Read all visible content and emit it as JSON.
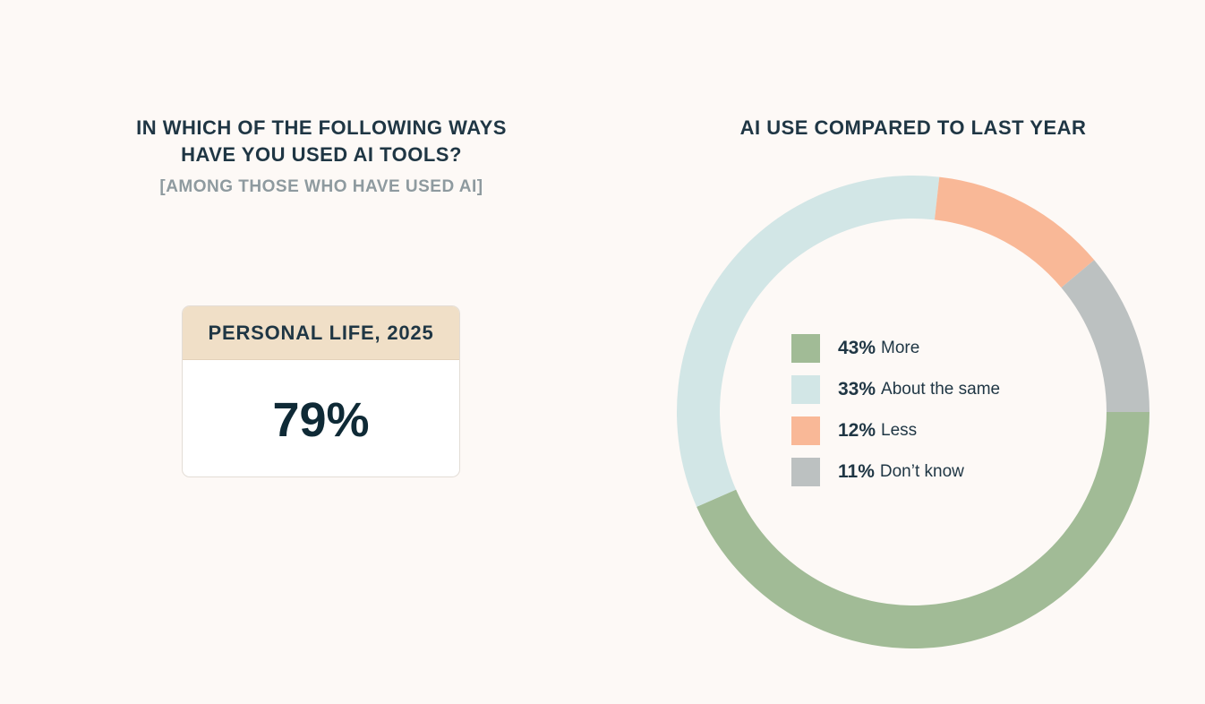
{
  "left_panel": {
    "title_line1": "IN WHICH OF THE FOLLOWING WAYS",
    "title_line2": "HAVE YOU USED AI TOOLS?",
    "subtitle": "[AMONG THOSE WHO HAVE USED AI]",
    "card": {
      "header": "PERSONAL LIFE, 2025",
      "value": "79%"
    }
  },
  "right_panel": {
    "title": "AI USE COMPARED TO LAST YEAR"
  },
  "colors": {
    "background": "#fdf9f6",
    "more": "#a1bb96",
    "same": "#d2e6e6",
    "less": "#f9b897",
    "dont_know": "#bcc1c1"
  },
  "chart_data": {
    "type": "pie",
    "title": "AI USE COMPARED TO LAST YEAR",
    "donut": true,
    "slices": [
      {
        "label": "More",
        "value": 43,
        "pct_text": "43%",
        "color": "#a1bb96"
      },
      {
        "label": "About the same",
        "value": 33,
        "pct_text": "33%",
        "color": "#d2e6e6"
      },
      {
        "label": "Less",
        "value": 12,
        "pct_text": "12%",
        "color": "#f9b897"
      },
      {
        "label": "Don’t know",
        "value": 11,
        "pct_text": "11%",
        "color": "#bcc1c1"
      }
    ],
    "legend_position": "center"
  }
}
